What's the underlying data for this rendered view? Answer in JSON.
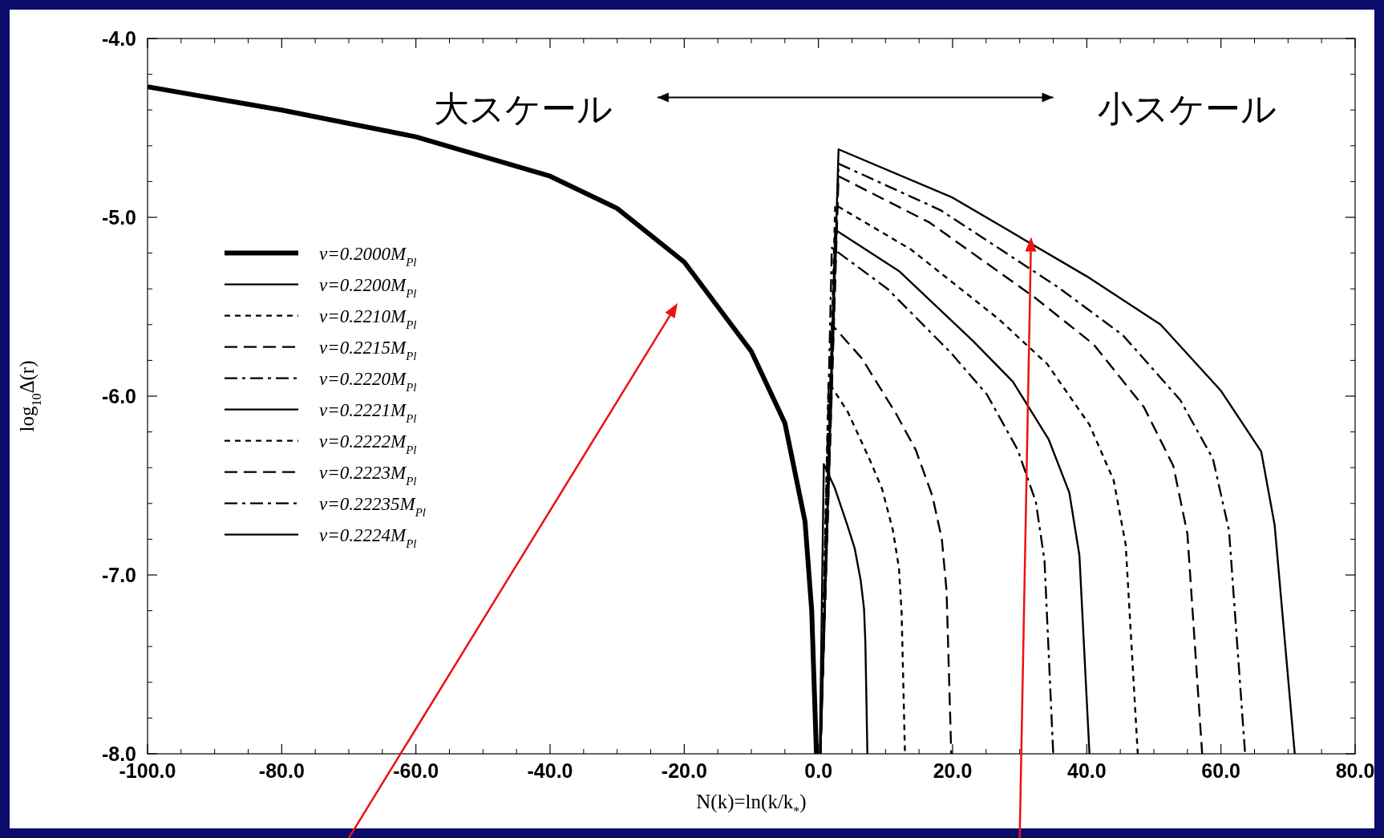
{
  "chart_data": {
    "type": "line",
    "xlabel": "N(k)=ln(k/k$_{*}$)",
    "ylabel": "log$_{10}$Δ(r)",
    "annotations": [
      "大スケール",
      "小スケール"
    ],
    "xlim": [
      -100,
      80
    ],
    "ylim": [
      -8,
      -4
    ],
    "xticks": [
      {
        "value": -100,
        "label": "-100.0"
      },
      {
        "value": -80,
        "label": "-80.0"
      },
      {
        "value": -60,
        "label": "-60.0"
      },
      {
        "value": -40,
        "label": "-40.0"
      },
      {
        "value": -20,
        "label": "-20.0"
      },
      {
        "value": 0,
        "label": "0.0"
      },
      {
        "value": 20,
        "label": "20.0"
      },
      {
        "value": 40,
        "label": "40.0"
      },
      {
        "value": 60,
        "label": "60.0"
      },
      {
        "value": 80,
        "label": "80.0"
      }
    ],
    "yticks": [
      {
        "value": -8,
        "label": "-8.0"
      },
      {
        "value": -7,
        "label": "-7.0"
      },
      {
        "value": -6,
        "label": "-6.0"
      },
      {
        "value": -5,
        "label": "-5.0"
      },
      {
        "value": -4,
        "label": "-4.0"
      }
    ],
    "legend": "left",
    "grid": false,
    "series": [
      {
        "name": "v=0.2000M$_{Pl}$",
        "color": "#000000",
        "line_style": "solid",
        "x": [
          -100,
          -80,
          -60,
          -40,
          -30,
          -20,
          -10,
          -5,
          -2,
          -1,
          -0.3
        ],
        "values": [
          -4.27,
          -4.4,
          -4.55,
          -4.77,
          -4.95,
          -5.25,
          -5.75,
          -6.15,
          -6.7,
          -7.2,
          -8
        ]
      },
      {
        "name": "v=0.2200M$_{Pl}$",
        "color": "#000000",
        "line_style": "solid",
        "x": [
          0.2,
          0.8,
          2.4,
          4.3,
          5.4,
          6.3,
          6.8,
          7,
          7.3
        ],
        "values": [
          -8,
          -6.38,
          -6.51,
          -6.72,
          -6.85,
          -7.03,
          -7.19,
          -7.38,
          -8
        ]
      },
      {
        "name": "v=0.2210M$_{Pl}$",
        "color": "#000000",
        "line_style": "dotted",
        "x": [
          0.3,
          1.5,
          4.4,
          7.7,
          9.5,
          11.1,
          12,
          12.4,
          12.9
        ],
        "values": [
          -8,
          -5.92,
          -6.09,
          -6.36,
          -6.52,
          -6.75,
          -6.96,
          -7.21,
          -8
        ]
      },
      {
        "name": "v=0.2215M$_{Pl}$",
        "color": "#000000",
        "line_style": "dashed",
        "x": [
          0.3,
          2,
          6.5,
          11.6,
          14.5,
          17,
          18.4,
          19.1,
          19.8
        ],
        "values": [
          -8,
          -5.6,
          -5.79,
          -6.1,
          -6.3,
          -6.56,
          -6.8,
          -7.09,
          -8
        ]
      },
      {
        "name": "v=0.2220M$_{Pl}$",
        "color": "#000000",
        "line_style": "dashdot",
        "x": [
          0.3,
          2,
          10.3,
          19.8,
          25.1,
          29.7,
          32.4,
          33.7,
          35
        ],
        "values": [
          -8,
          -5.17,
          -5.4,
          -5.76,
          -5.99,
          -6.3,
          -6.59,
          -6.92,
          -8
        ]
      },
      {
        "name": "v=0.2221M$_{Pl}$",
        "color": "#000000",
        "line_style": "solid",
        "x": [
          0.3,
          2.5,
          12,
          23,
          29,
          34.3,
          37.4,
          38.9,
          40.4
        ],
        "values": [
          -8,
          -5.07,
          -5.3,
          -5.69,
          -5.92,
          -6.24,
          -6.54,
          -6.89,
          -8
        ]
      },
      {
        "name": "v=0.2222M$_{Pl}$",
        "color": "#000000",
        "line_style": "dotted",
        "x": [
          0.3,
          2.5,
          13.8,
          26.9,
          34.1,
          40.4,
          44,
          45.8,
          47.6
        ],
        "values": [
          -8,
          -4.93,
          -5.18,
          -5.57,
          -5.82,
          -6.16,
          -6.47,
          -6.83,
          -8
        ]
      },
      {
        "name": "v=0.2223M$_{Pl}$",
        "color": "#000000",
        "line_style": "dashed",
        "x": [
          0.3,
          3,
          16.6,
          32.3,
          41,
          48.5,
          52.9,
          55,
          57.2
        ],
        "values": [
          -8,
          -4.77,
          -5.03,
          -5.45,
          -5.71,
          -6.06,
          -6.39,
          -6.77,
          -8
        ]
      },
      {
        "name": "v=0.22235M$_{Pl}$",
        "color": "#000000",
        "line_style": "dashdot",
        "x": [
          0.3,
          3,
          18.2,
          35.7,
          45.4,
          53.9,
          58.8,
          61.2,
          63.6
        ],
        "values": [
          -8,
          -4.7,
          -4.96,
          -5.39,
          -5.66,
          -6.02,
          -6.35,
          -6.75,
          -8
        ]
      },
      {
        "name": "v=0.2224M$_{Pl}$",
        "color": "#000000",
        "line_style": "solid",
        "x": [
          0.3,
          3,
          20,
          40,
          51,
          60,
          66,
          68,
          71
        ],
        "values": [
          -8,
          -4.62,
          -4.89,
          -5.33,
          -5.6,
          -5.97,
          -6.31,
          -6.72,
          -8
        ]
      }
    ]
  }
}
